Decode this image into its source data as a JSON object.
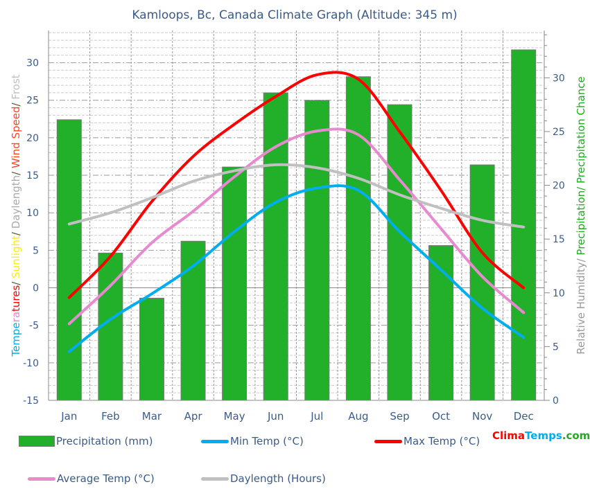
{
  "chart_data": {
    "type": "bar+line",
    "title": "Kamloops, Bc, Canada Climate Graph (Altitude: 345 m)",
    "categories": [
      "Jan",
      "Feb",
      "Mar",
      "Apr",
      "May",
      "Jun",
      "Jul",
      "Aug",
      "Sep",
      "Oct",
      "Nov",
      "Dec"
    ],
    "left_axis": {
      "label_parts": [
        {
          "text": "Tempe",
          "color": "#00aeef"
        },
        {
          "text": "ra",
          "color": "#ee82c8"
        },
        {
          "text": "tures",
          "color": "#ff0000"
        },
        {
          "text": "/ ",
          "color": "#555533"
        },
        {
          "text": "Sunlight",
          "color": "#ffee00"
        },
        {
          "text": "/ ",
          "color": "#555533"
        },
        {
          "text": "Daylength",
          "color": "#aaaaaa"
        },
        {
          "text": "/ ",
          "color": "#555533"
        },
        {
          "text": "Wind Speed",
          "color": "#ff4422"
        },
        {
          "text": "/ ",
          "color": "#555533"
        },
        {
          "text": "Frost",
          "color": "#c0c0c0"
        }
      ],
      "ylim": [
        -15,
        34.3
      ],
      "ticks": [
        -15,
        -10,
        -5,
        0,
        5,
        10,
        15,
        20,
        25,
        30
      ]
    },
    "right_axis": {
      "label_parts": [
        {
          "text": "Relative Humidity/ ",
          "color": "#999999"
        },
        {
          "text": "Precipitation",
          "color": "#22aa22"
        },
        {
          "text": "/ Precipitation Chance",
          "color": "#22aa22"
        }
      ],
      "ylim": [
        0,
        34.4
      ],
      "ticks": [
        0,
        5,
        10,
        15,
        20,
        25,
        30
      ]
    },
    "series": [
      {
        "name": "Precipitation (mm)",
        "type": "bar",
        "axis": "right",
        "color": "#22b02a",
        "values": [
          26.1,
          13.7,
          9.5,
          14.8,
          21.7,
          28.6,
          27.9,
          30.1,
          27.5,
          14.4,
          21.9,
          32.6
        ]
      },
      {
        "name": "Min Temp (°C)",
        "type": "line",
        "axis": "left",
        "color": "#00aeef",
        "values": [
          -8.5,
          -4.2,
          -0.8,
          2.9,
          7.5,
          11.4,
          13.3,
          13.0,
          7.5,
          2.4,
          -2.7,
          -6.6
        ]
      },
      {
        "name": "Max Temp (°C)",
        "type": "line",
        "axis": "left",
        "color": "#ff0000",
        "values": [
          -1.3,
          4.2,
          11.5,
          17.5,
          21.8,
          25.5,
          28.4,
          27.8,
          20.8,
          13.0,
          4.7,
          0.0
        ]
      },
      {
        "name": "Average Temp (°C)",
        "type": "line",
        "axis": "left",
        "color": "#e88ad0",
        "values": [
          -4.8,
          0.3,
          6.0,
          10.2,
          14.8,
          18.8,
          20.9,
          20.4,
          14.4,
          7.9,
          1.5,
          -3.3
        ]
      },
      {
        "name": "Daylength (Hours)",
        "type": "line",
        "axis": "left",
        "color": "#c0c0c0",
        "values": [
          8.5,
          10.0,
          12.0,
          14.2,
          15.6,
          16.4,
          16.0,
          14.6,
          12.4,
          10.6,
          9.0,
          8.1
        ]
      }
    ],
    "grid": true,
    "legend_position": "bottom"
  },
  "logo": {
    "parts": [
      {
        "text": "Clima",
        "color": "#ff0000"
      },
      {
        "text": "Temps",
        "color": "#00aeef"
      },
      {
        "text": ".com",
        "color": "#22aa22"
      }
    ]
  }
}
